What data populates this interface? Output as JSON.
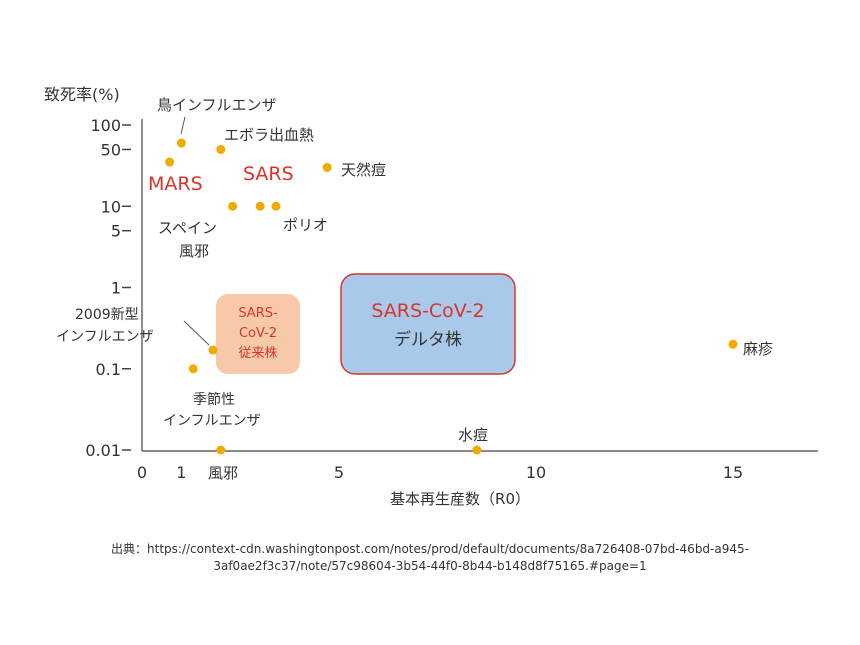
{
  "chart_data": {
    "type": "scatter",
    "title": "",
    "xlabel": "基本再生産数（R0）",
    "ylabel": "致死率(%)",
    "x_scale": "linear",
    "y_scale": "log",
    "xlim": [
      0,
      17
    ],
    "ylim": [
      0.01,
      150
    ],
    "x_ticks": [
      {
        "value": 0,
        "label": "0"
      },
      {
        "value": 1,
        "label": "1"
      },
      {
        "value": 5,
        "label": "5"
      },
      {
        "value": 10,
        "label": "10"
      },
      {
        "value": 15,
        "label": "15"
      }
    ],
    "y_ticks": [
      {
        "value": 100,
        "label": "100"
      },
      {
        "value": 50,
        "label": "50"
      },
      {
        "value": 10,
        "label": "10"
      },
      {
        "value": 5,
        "label": "5"
      },
      {
        "value": 1,
        "label": "1"
      },
      {
        "value": 0.1,
        "label": "0.1"
      },
      {
        "value": 0.01,
        "label": "0.01"
      }
    ],
    "point_color": "#f2a900",
    "highlight_color": "#d9342b",
    "points": [
      {
        "label": "鳥インフルエンザ",
        "x": 1.0,
        "y": 60
      },
      {
        "label": "エボラ出血熱",
        "x": 2.0,
        "y": 50
      },
      {
        "label": "MARS",
        "x": 0.7,
        "y": 35,
        "highlight": true
      },
      {
        "label": "SARS",
        "x": 3.0,
        "y": 10,
        "highlight": true
      },
      {
        "label": "天然痘",
        "x": 4.7,
        "y": 30
      },
      {
        "label": "スペイン風邪",
        "x": 2.3,
        "y": 10
      },
      {
        "label": "ポリオ",
        "x": 3.4,
        "y": 10
      },
      {
        "label": "2009新型インフルエンザ",
        "x": 1.8,
        "y": 0.17
      },
      {
        "label": "季節性インフルエンザ",
        "x": 1.3,
        "y": 0.1
      },
      {
        "label": "風邪",
        "x": 2.0,
        "y": 0.01
      },
      {
        "label": "水痘",
        "x": 8.5,
        "y": 0.01
      },
      {
        "label": "麻疹",
        "x": 15.0,
        "y": 0.2
      }
    ],
    "callouts": [
      {
        "label": "SARS-CoV-2 従来株",
        "x_range": [
          1.9,
          4.0
        ],
        "y_range": [
          0.1,
          1.2
        ],
        "fill": "#f8c9a8",
        "text_color": "#d9342b"
      },
      {
        "label": "SARS-CoV-2 デルタ株",
        "x_range": [
          5.0,
          9.4
        ],
        "y_range": [
          0.1,
          1.4
        ],
        "fill": "#a9c9ea",
        "border": "#d9342b",
        "text_color": "#d9342b"
      }
    ]
  },
  "labels": {
    "bird_flu": "鳥インフルエンザ",
    "ebola": "エボラ出血熱",
    "mars": "MARS",
    "sars": "SARS",
    "smallpox": "天然痘",
    "spanish_flu_1": "スペイン",
    "spanish_flu_2": "風邪",
    "polio": "ポリオ",
    "flu2009_1": "2009新型",
    "flu2009_2": "インフルエンザ",
    "seasonal_1": "季節性",
    "seasonal_2": "インフルエンザ",
    "cold": "風邪",
    "chickenpox": "水痘",
    "measles": "麻疹",
    "orig_1": "SARS-",
    "orig_2": "CoV-2",
    "orig_3": "従来株",
    "delta_1": "SARS-CoV-2",
    "delta_2": "デルタ株"
  },
  "source": {
    "line1": "出典：https://context-cdn.washingtonpost.com/notes/prod/default/documents/8a726408-07bd-46bd-a945-",
    "line2": "3af0ae2f3c37/note/57c98604-3b54-44f0-8b44-b148d8f75165.#page=1"
  }
}
